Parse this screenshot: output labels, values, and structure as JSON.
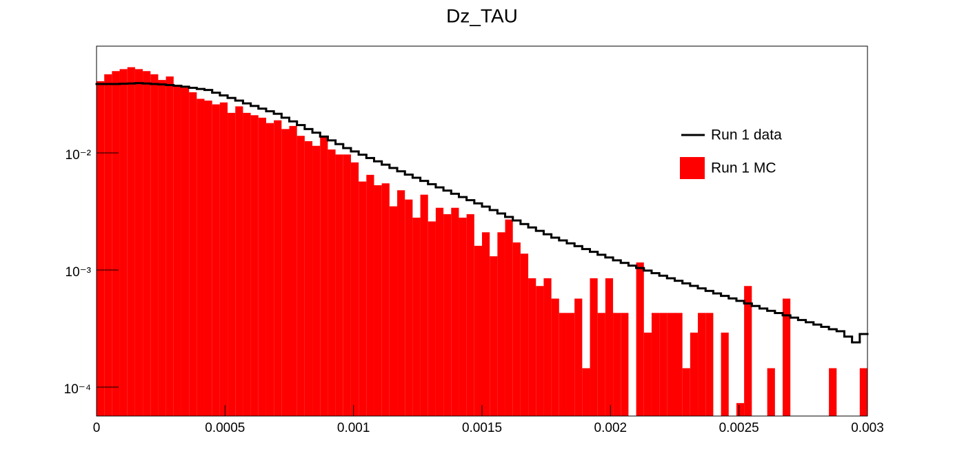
{
  "chart_data": {
    "type": "histogram",
    "title": "Dz_TAU",
    "log_y": true,
    "legend": "upper-right",
    "bins": [
      0,
      3e-05,
      6e-05,
      9e-05,
      0.00012,
      0.00015,
      0.00018,
      0.00021,
      0.00024,
      0.00027,
      0.0003,
      0.00033,
      0.00036,
      0.00039,
      0.00042,
      0.00045,
      0.00048,
      0.00051,
      0.00054,
      0.00057,
      0.0006,
      0.00063,
      0.00066,
      0.00069,
      0.00072,
      0.00075,
      0.00078,
      0.00081,
      0.00084,
      0.00087,
      0.0009,
      0.00093,
      0.00096,
      0.00099,
      0.00102,
      0.00105,
      0.00108,
      0.00111,
      0.00114,
      0.00117,
      0.0012,
      0.00123,
      0.00126,
      0.00129,
      0.00132,
      0.00135,
      0.00138,
      0.00141,
      0.00144,
      0.00147,
      0.0015,
      0.00153,
      0.00156,
      0.00159,
      0.00162,
      0.00165,
      0.00168,
      0.00171,
      0.00174,
      0.00177,
      0.0018,
      0.00183,
      0.00186,
      0.00189,
      0.00192,
      0.00195,
      0.00198,
      0.00201,
      0.00204,
      0.00207,
      0.0021,
      0.00213,
      0.00216,
      0.00219,
      0.00222,
      0.00225,
      0.00228,
      0.00231,
      0.00234,
      0.00237,
      0.0024,
      0.00243,
      0.00246,
      0.00249,
      0.00252,
      0.00255,
      0.00258,
      0.00261,
      0.00264,
      0.00267,
      0.0027,
      0.00273,
      0.00276,
      0.00279,
      0.00282,
      0.00285,
      0.00288,
      0.00291,
      0.00294,
      0.00297,
      0.003
    ],
    "series": [
      {
        "name": "Run 1 data",
        "style": "step",
        "color": "#000000",
        "values": [
          0.0388,
          0.0388,
          0.0388,
          0.039,
          0.0392,
          0.0395,
          0.0392,
          0.0388,
          0.0385,
          0.038,
          0.0375,
          0.0368,
          0.036,
          0.0352,
          0.0345,
          0.0327,
          0.031,
          0.0295,
          0.028,
          0.0265,
          0.0252,
          0.0239,
          0.0227,
          0.0216,
          0.02,
          0.0186,
          0.0173,
          0.016,
          0.0149,
          0.0138,
          0.0128,
          0.0119,
          0.011,
          0.0103,
          0.00966,
          0.00905,
          0.00848,
          0.00794,
          0.00744,
          0.00697,
          0.00653,
          0.00614,
          0.00577,
          0.00541,
          0.00508,
          0.00477,
          0.00448,
          0.0042,
          0.00395,
          0.00371,
          0.00348,
          0.00325,
          0.00304,
          0.00284,
          0.00265,
          0.00247,
          0.00231,
          0.00216,
          0.00202,
          0.00189,
          0.00179,
          0.00169,
          0.0016,
          0.00151,
          0.00143,
          0.00135,
          0.00128,
          0.00121,
          0.00115,
          0.00109,
          0.00104,
          0.000989,
          0.00094,
          0.000894,
          0.00085,
          0.000809,
          0.000769,
          0.000732,
          0.000697,
          0.000663,
          0.000631,
          0.000601,
          0.000572,
          0.000545,
          0.000518,
          0.000493,
          0.000469,
          0.000448,
          0.000429,
          0.00041,
          0.000392,
          0.000374,
          0.000358,
          0.000342,
          0.000327,
          0.000312,
          0.0003,
          0.00027,
          0.000241,
          0.000284
        ]
      },
      {
        "name": "Run 1 MC",
        "style": "bar",
        "color": "#ff0000",
        "values": [
          0.041,
          0.047,
          0.05,
          0.052,
          0.054,
          0.052,
          0.05,
          0.047,
          0.042,
          0.045,
          0.038,
          0.036,
          0.033,
          0.029,
          0.028,
          0.026,
          0.027,
          0.022,
          0.025,
          0.022,
          0.021,
          0.02,
          0.018,
          0.019,
          0.016,
          0.017,
          0.014,
          0.0126,
          0.0115,
          0.0138,
          0.0107,
          0.0097,
          0.0097,
          0.0083,
          0.0057,
          0.0065,
          0.0053,
          0.0055,
          0.0035,
          0.0048,
          0.004,
          0.0028,
          0.0044,
          0.0026,
          0.0034,
          0.003,
          0.0034,
          0.0028,
          0.003,
          0.00161,
          0.0021,
          0.00131,
          0.0021,
          0.0027,
          0.00172,
          0.00138,
          0.00085,
          0.00073,
          0.00085,
          0.00057,
          0.00043,
          0.00043,
          0.00057,
          0.000145,
          0.00085,
          0.00043,
          0.00085,
          0.00043,
          0.00043,
          0,
          0.00116,
          0.000292,
          0.00043,
          0.00043,
          0.00043,
          0.00043,
          0.000145,
          0.000292,
          0.00043,
          0.00043,
          0,
          0.000292,
          0,
          7.3e-05,
          0.00073,
          0,
          0,
          0.000145,
          0,
          0.00057,
          0,
          0,
          0,
          0,
          0,
          0.000145,
          0,
          0,
          0,
          0.000145
        ]
      }
    ],
    "xlim": [
      0,
      0.003
    ],
    "xticks": [
      0,
      0.0005,
      0.001,
      0.0015,
      0.002,
      0.0025,
      0.003
    ],
    "ylim": [
      5.66e-05,
      0.0817
    ],
    "yticks": [
      {
        "value": 0.0001,
        "label": "10⁻⁴"
      },
      {
        "value": 0.001,
        "label": "10⁻³"
      },
      {
        "value": 0.01,
        "label": "10⁻²"
      }
    ]
  }
}
